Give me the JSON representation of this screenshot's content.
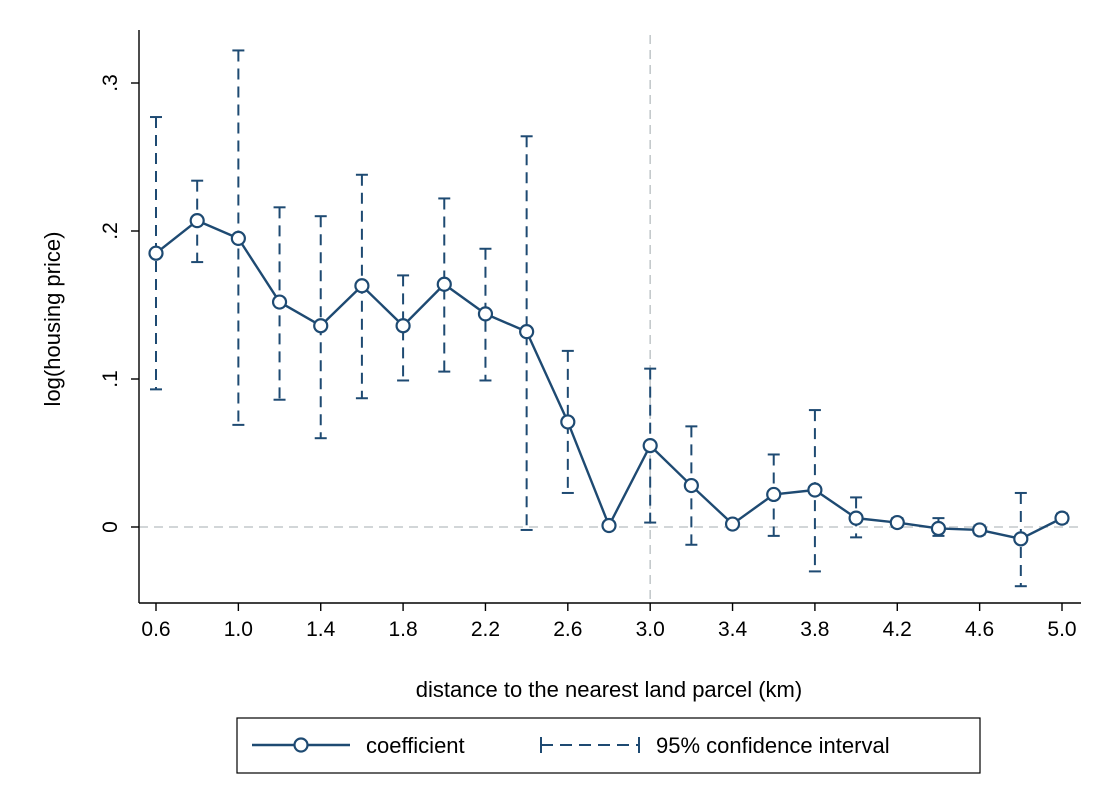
{
  "chart_data": {
    "type": "line",
    "title": "",
    "xlabel": "distance to the nearest land parcel (km)",
    "ylabel": "log(housing price)",
    "x_ticks": [
      "0.6",
      "1.0",
      "1.4",
      "1.8",
      "2.2",
      "2.6",
      "3.0",
      "3.4",
      "3.8",
      "4.2",
      "4.6",
      "5.0"
    ],
    "y_ticks": [
      "0",
      ".1",
      ".2",
      ".3"
    ],
    "xlim": [
      0.6,
      5.0
    ],
    "ylim": [
      -0.05,
      0.33
    ],
    "reference_lines": {
      "x": 3.0,
      "y": 0.0
    },
    "grid": false,
    "legend_position": "bottom",
    "series": [
      {
        "name": "coefficient",
        "x": [
          0.6,
          0.8,
          1.0,
          1.2,
          1.4,
          1.6,
          1.8,
          2.0,
          2.2,
          2.4,
          2.6,
          2.8,
          3.0,
          3.2,
          3.4,
          3.6,
          3.8,
          4.0,
          4.2,
          4.4,
          4.6,
          4.8,
          5.0
        ],
        "values": [
          0.185,
          0.207,
          0.195,
          0.152,
          0.136,
          0.163,
          0.136,
          0.164,
          0.144,
          0.132,
          0.071,
          0.001,
          0.055,
          0.028,
          0.002,
          0.022,
          0.025,
          0.006,
          0.003,
          -0.001,
          -0.002,
          -0.008,
          0.006
        ]
      },
      {
        "name": "95% confidence interval",
        "x": [
          0.6,
          0.8,
          1.0,
          1.2,
          1.4,
          1.6,
          1.8,
          2.0,
          2.2,
          2.4,
          2.6,
          2.8,
          3.0,
          3.2,
          3.4,
          3.6,
          3.8,
          4.0,
          4.2,
          4.4,
          4.6,
          4.8,
          5.0
        ],
        "lower": [
          0.093,
          0.179,
          0.069,
          0.086,
          0.06,
          0.087,
          0.099,
          0.105,
          0.099,
          -0.002,
          0.023,
          0.0,
          0.003,
          -0.012,
          0.0,
          -0.006,
          -0.03,
          -0.007,
          0.0,
          -0.006,
          -0.005,
          -0.04,
          0.003
        ],
        "upper": [
          0.277,
          0.234,
          0.322,
          0.216,
          0.21,
          0.238,
          0.17,
          0.222,
          0.188,
          0.264,
          0.119,
          0.003,
          0.107,
          0.068,
          0.004,
          0.049,
          0.079,
          0.02,
          0.006,
          0.006,
          0.001,
          0.023,
          0.009
        ]
      }
    ],
    "colors": {
      "series": "#1e4a72",
      "reference": "#c4c9cc",
      "axis": "#000000"
    }
  }
}
